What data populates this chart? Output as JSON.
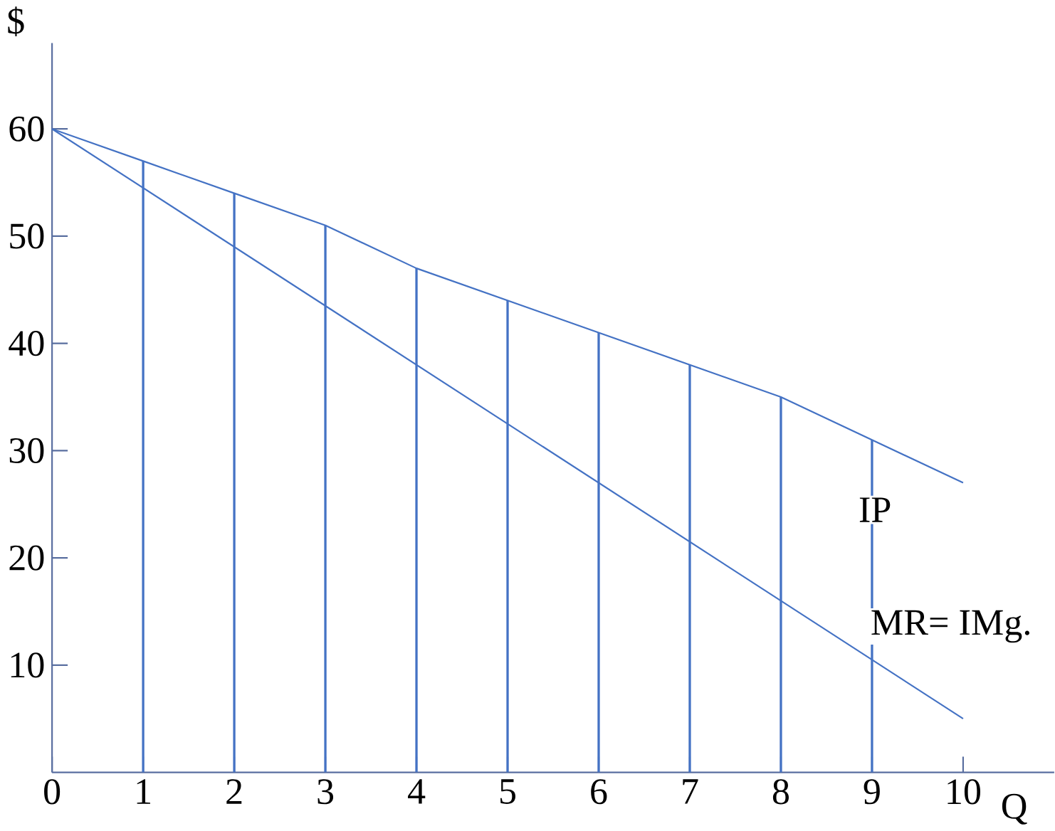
{
  "chart_data": {
    "type": "line",
    "xlabel": "Q",
    "ylabel": "$",
    "series": [
      {
        "color": "#4472c4",
        "x": [
          0,
          1,
          2,
          3,
          4,
          5,
          6,
          7,
          8,
          9,
          10
        ],
        "values": [
          60,
          57,
          54,
          51,
          47,
          44,
          41,
          38,
          35,
          31,
          27
        ]
      },
      {
        "color": "#4472c4",
        "x": [
          0,
          10
        ],
        "values": [
          60,
          5
        ]
      },
      {
        "type": "bar",
        "color": "#4472c4",
        "x": [
          1,
          2,
          3,
          4,
          5,
          6,
          7,
          8,
          9
        ],
        "values": [
          57,
          54,
          51,
          47,
          44,
          41,
          38,
          35,
          31
        ]
      }
    ],
    "annotations": [
      "IP",
      "MR= IMg."
    ],
    "xlim": [
      0,
      11
    ],
    "ylim": [
      0,
      68
    ],
    "xticks": [
      0,
      1,
      2,
      3,
      4,
      5,
      6,
      7,
      8,
      9,
      10
    ],
    "yticks": [
      10,
      20,
      30,
      40,
      50,
      60
    ],
    "marker": "none",
    "line_style": "solid"
  }
}
